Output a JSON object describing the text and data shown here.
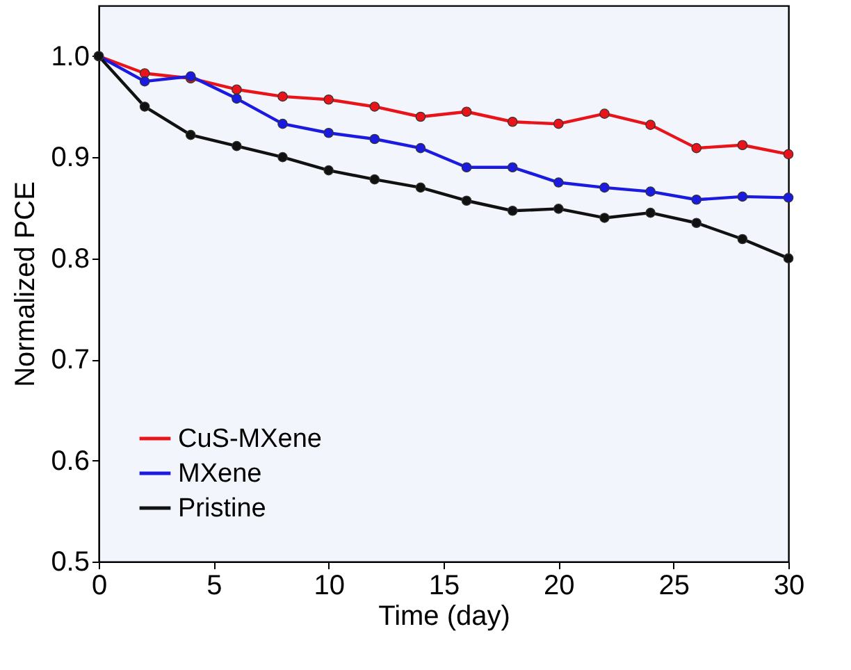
{
  "chart_data": {
    "type": "line",
    "xlabel": "Time (day)",
    "ylabel": "Normalized PCE",
    "x": [
      0,
      2,
      4,
      6,
      8,
      10,
      12,
      14,
      16,
      18,
      20,
      22,
      24,
      26,
      28,
      30
    ],
    "series": [
      {
        "name": "CuS-MXene",
        "color": "#e8141a",
        "values": [
          1.0,
          0.983,
          0.978,
          0.967,
          0.96,
          0.957,
          0.95,
          0.94,
          0.945,
          0.935,
          0.933,
          0.943,
          0.932,
          0.909,
          0.912,
          0.903
        ]
      },
      {
        "name": "MXene",
        "color": "#1a1ae0",
        "values": [
          1.0,
          0.975,
          0.98,
          0.958,
          0.933,
          0.924,
          0.918,
          0.909,
          0.89,
          0.89,
          0.875,
          0.87,
          0.866,
          0.858,
          0.861,
          0.86
        ]
      },
      {
        "name": "Pristine",
        "color": "#111111",
        "values": [
          1.0,
          0.95,
          0.922,
          0.911,
          0.9,
          0.887,
          0.878,
          0.87,
          0.857,
          0.847,
          0.849,
          0.84,
          0.845,
          0.835,
          0.819,
          0.8
        ]
      }
    ],
    "xlim": [
      0,
      30
    ],
    "xticks": [
      0,
      5,
      10,
      15,
      20,
      25,
      30
    ],
    "ylim": [
      0.5,
      1.05
    ],
    "yticks": [
      0.5,
      0.6,
      0.7,
      0.8,
      0.9,
      {
        "value": 1,
        "label": "1.0"
      }
    ],
    "grid": false,
    "legend": "bottom left",
    "marker": "circle",
    "line_style": "solid"
  }
}
